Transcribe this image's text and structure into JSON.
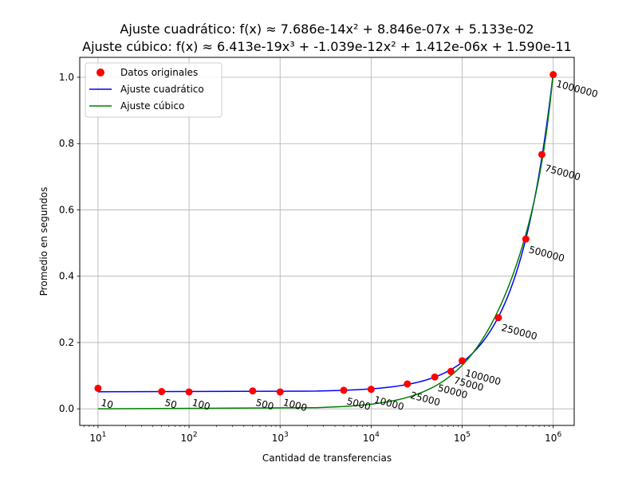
{
  "chart_data": {
    "type": "scatter",
    "title_line1": "Ajuste cuadrático: f(x) ≈ 7.686e-14x² + 8.846e-07x + 5.133e-02",
    "title_line2": "Ajuste cúbico: f(x) ≈ 6.413e-19x³ + -1.039e-12x² + 1.412e-06x + 1.590e-11",
    "xlabel": "Cantidad de transferencias",
    "ylabel": "Promedio en segundos",
    "xscale": "log",
    "xlim": [
      6.3,
      1700000
    ],
    "ylim": [
      -0.05,
      1.06
    ],
    "grid": true,
    "legend_position": "top-left",
    "x_ticks": [
      {
        "value": 10,
        "base": "10",
        "exp": "1"
      },
      {
        "value": 100,
        "base": "10",
        "exp": "2"
      },
      {
        "value": 1000,
        "base": "10",
        "exp": "3"
      },
      {
        "value": 10000,
        "base": "10",
        "exp": "4"
      },
      {
        "value": 100000,
        "base": "10",
        "exp": "5"
      },
      {
        "value": 1000000,
        "base": "10",
        "exp": "6"
      }
    ],
    "y_ticks": [
      {
        "value": 0.0,
        "label": "0.0"
      },
      {
        "value": 0.2,
        "label": "0.2"
      },
      {
        "value": 0.4,
        "label": "0.4"
      },
      {
        "value": 0.6,
        "label": "0.6"
      },
      {
        "value": 0.8,
        "label": "0.8"
      },
      {
        "value": 1.0,
        "label": "1.0"
      }
    ],
    "points": {
      "name": "Datos originales",
      "color": "#ff0000",
      "x": [
        10,
        50,
        100,
        500,
        1000,
        5000,
        10000,
        25000,
        50000,
        75000,
        100000,
        250000,
        500000,
        750000,
        1000000
      ],
      "y": [
        0.062,
        0.052,
        0.051,
        0.054,
        0.051,
        0.056,
        0.059,
        0.075,
        0.096,
        0.113,
        0.145,
        0.275,
        0.512,
        0.767,
        1.008
      ]
    },
    "point_labels": [
      "10",
      "50",
      "100",
      "500",
      "1000",
      "5000",
      "10000",
      "25000",
      "50000",
      "75000",
      "100000",
      "250000",
      "500000",
      "750000",
      "1000000"
    ],
    "series": [
      {
        "name": "Ajuste cuadrático",
        "color": "#0000ff",
        "coefficients": [
          7.686e-14,
          8.846e-07,
          0.05133
        ]
      },
      {
        "name": "Ajuste cúbico",
        "color": "#008000",
        "coefficients": [
          6.413e-19,
          -1.039e-12,
          1.412e-06,
          1.59e-11
        ]
      }
    ]
  }
}
